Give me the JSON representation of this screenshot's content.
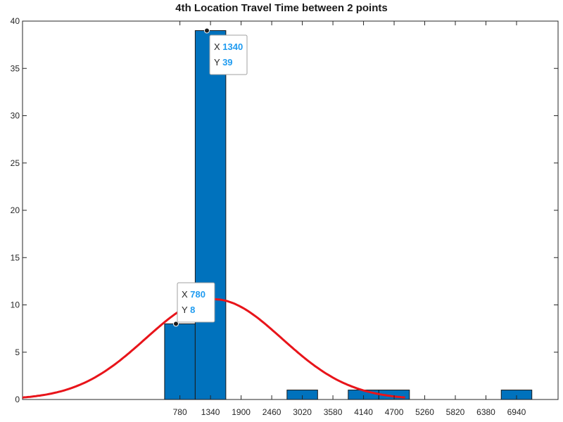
{
  "chart_data": {
    "type": "bar",
    "title": "4th Location Travel Time between 2 points",
    "xlabel": "",
    "ylabel": "",
    "xlim": [
      -2100,
      7700
    ],
    "ylim": [
      0,
      40
    ],
    "x_ticks": [
      780,
      1340,
      1900,
      2460,
      3020,
      3580,
      4140,
      4700,
      5260,
      5820,
      6380,
      6940
    ],
    "y_ticks": [
      0,
      5,
      10,
      15,
      20,
      25,
      30,
      35,
      40
    ],
    "bin_width": 560,
    "bars": [
      {
        "x": 780,
        "value": 8
      },
      {
        "x": 1340,
        "value": 39
      },
      {
        "x": 3020,
        "value": 1
      },
      {
        "x": 4140,
        "value": 1
      },
      {
        "x": 4700,
        "value": 1
      },
      {
        "x": 6940,
        "value": 1
      }
    ],
    "bar_color": "#0072bd",
    "fit_curve": {
      "type": "normal",
      "mean": 1400,
      "std": 1250,
      "peak": 10.6,
      "x_range": [
        -2100,
        4900
      ],
      "color": "#e8141a"
    },
    "datatips": [
      {
        "x_label": "X",
        "x_value": "780",
        "y_label": "Y",
        "y_value": "8"
      },
      {
        "x_label": "X",
        "x_value": "1340",
        "y_label": "Y",
        "y_value": "39"
      }
    ],
    "tip_value_color": "#1f9bf0",
    "grid": false,
    "legend": "none"
  }
}
